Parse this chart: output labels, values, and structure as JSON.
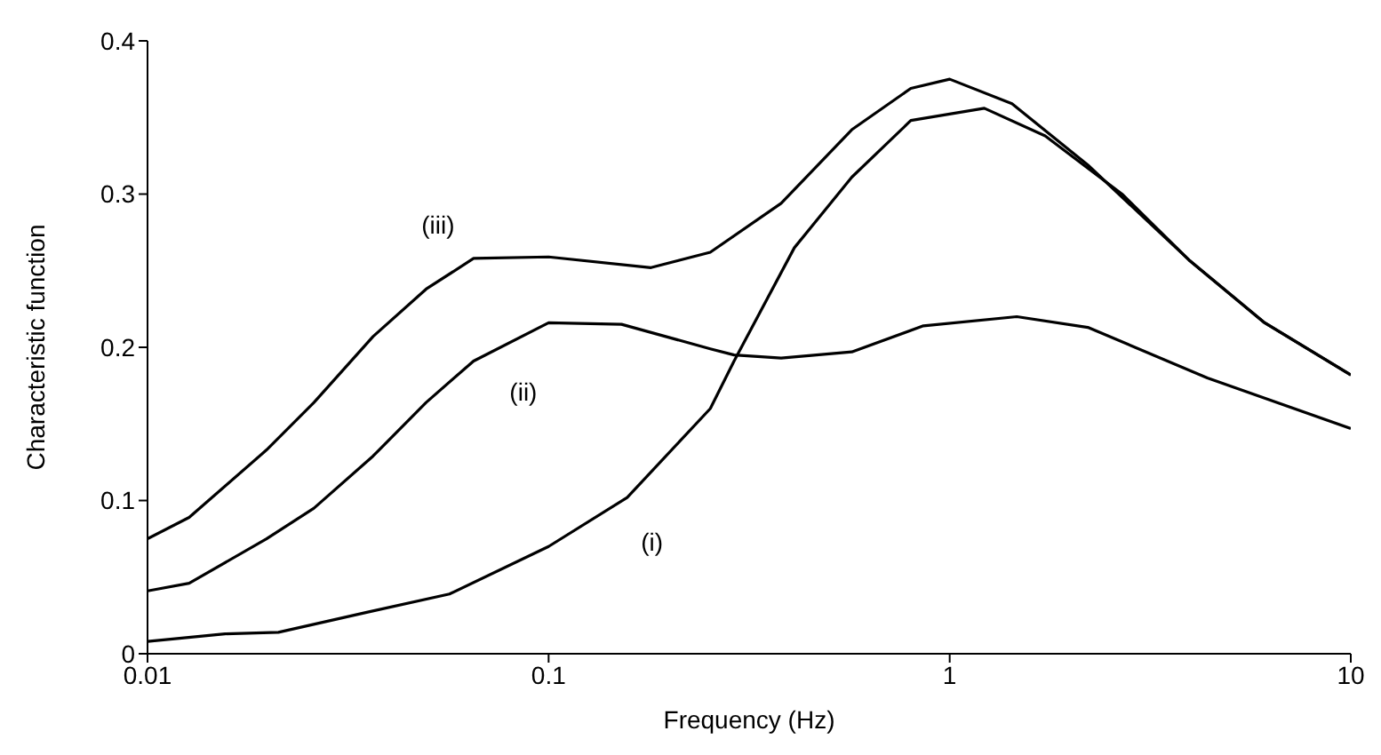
{
  "chart_data": {
    "type": "line",
    "xlabel": "Frequency (Hz)",
    "ylabel": "Characteristic function",
    "log": "x",
    "xlim": [
      0.01,
      10
    ],
    "xticks": [
      0.01,
      0.1,
      1,
      10
    ],
    "ylim": [
      0,
      0.4
    ],
    "yticks": [
      0,
      0.1,
      0.2,
      0.3,
      0.4
    ],
    "grid": false,
    "marker": "none",
    "line_style": "solid",
    "series": [
      {
        "name": "(i)",
        "color": "#000000",
        "x": [
          0.01,
          0.0156,
          0.0212,
          0.0352,
          0.0566,
          0.1,
          0.157,
          0.253,
          0.29,
          0.41,
          0.57,
          0.8,
          1.22,
          1.73,
          2.69,
          3.95,
          6.1,
          10
        ],
        "values": [
          0.008,
          0.013,
          0.014,
          0.027,
          0.039,
          0.07,
          0.102,
          0.16,
          0.191,
          0.265,
          0.311,
          0.348,
          0.356,
          0.338,
          0.3,
          0.257,
          0.216,
          0.182
        ]
      },
      {
        "name": "(ii)",
        "color": "#000000",
        "x": [
          0.01,
          0.0127,
          0.0198,
          0.026,
          0.0365,
          0.0495,
          0.065,
          0.1,
          0.152,
          0.253,
          0.29,
          0.38,
          0.57,
          0.86,
          1.47,
          2.21,
          4.39,
          10
        ],
        "values": [
          0.041,
          0.046,
          0.075,
          0.095,
          0.129,
          0.164,
          0.191,
          0.216,
          0.215,
          0.199,
          0.195,
          0.193,
          0.197,
          0.214,
          0.22,
          0.213,
          0.18,
          0.147
        ]
      },
      {
        "name": "(iii)",
        "color": "#000000",
        "x": [
          0.01,
          0.0127,
          0.0198,
          0.026,
          0.0365,
          0.0495,
          0.065,
          0.1,
          0.18,
          0.253,
          0.38,
          0.57,
          0.8,
          1,
          1.43,
          2.21,
          3.95,
          6.1,
          10
        ],
        "values": [
          0.075,
          0.089,
          0.133,
          0.164,
          0.207,
          0.238,
          0.258,
          0.259,
          0.252,
          0.262,
          0.294,
          0.342,
          0.369,
          0.375,
          0.359,
          0.319,
          0.257,
          0.216,
          0.182
        ]
      }
    ]
  }
}
